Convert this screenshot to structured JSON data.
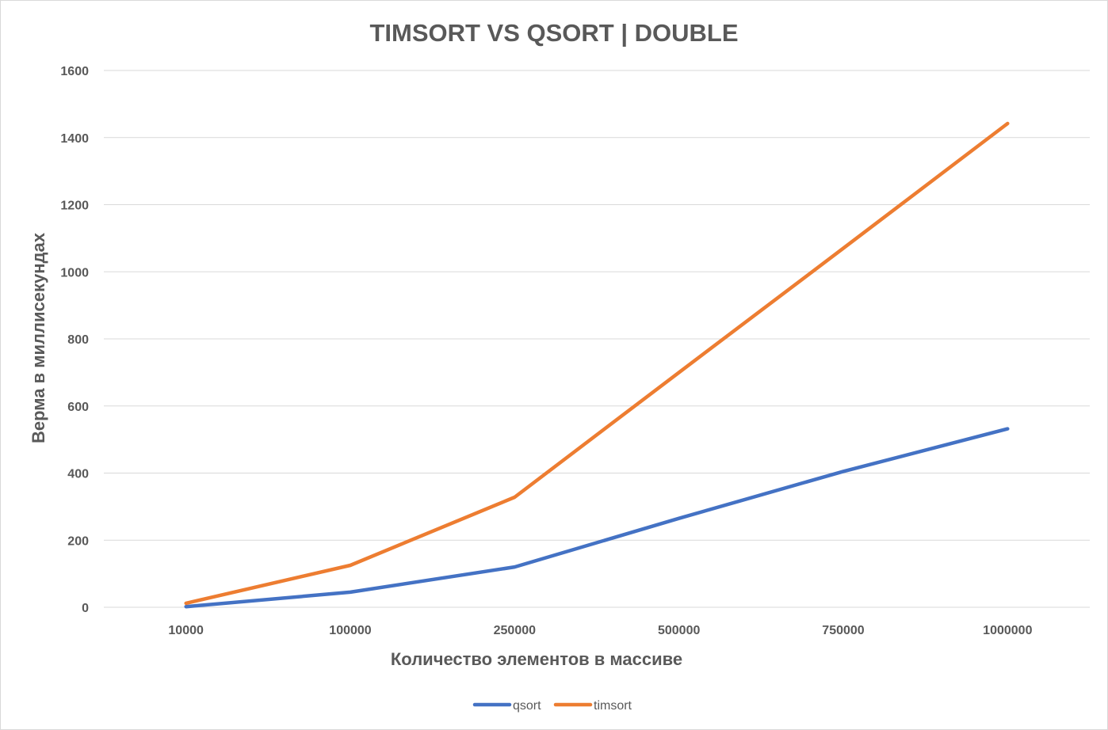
{
  "chart_data": {
    "type": "line",
    "title": "TIMSORT VS QSORT | DOUBLE",
    "xlabel": "Количество элементов в массиве",
    "ylabel": "Верма в миллисекундах",
    "categories": [
      "10000",
      "100000",
      "250000",
      "500000",
      "750000",
      "1000000"
    ],
    "ylim": [
      0,
      1600
    ],
    "yticks": [
      0,
      200,
      400,
      600,
      800,
      1000,
      1200,
      1400,
      1600
    ],
    "grid": true,
    "legend_position": "bottom",
    "series": [
      {
        "name": "qsort",
        "color": "#4472C4",
        "values": [
          2,
          45,
          120,
          265,
          405,
          532
        ]
      },
      {
        "name": "timsort",
        "color": "#ED7D31",
        "values": [
          12,
          125,
          328,
          700,
          1070,
          1442
        ]
      }
    ]
  }
}
